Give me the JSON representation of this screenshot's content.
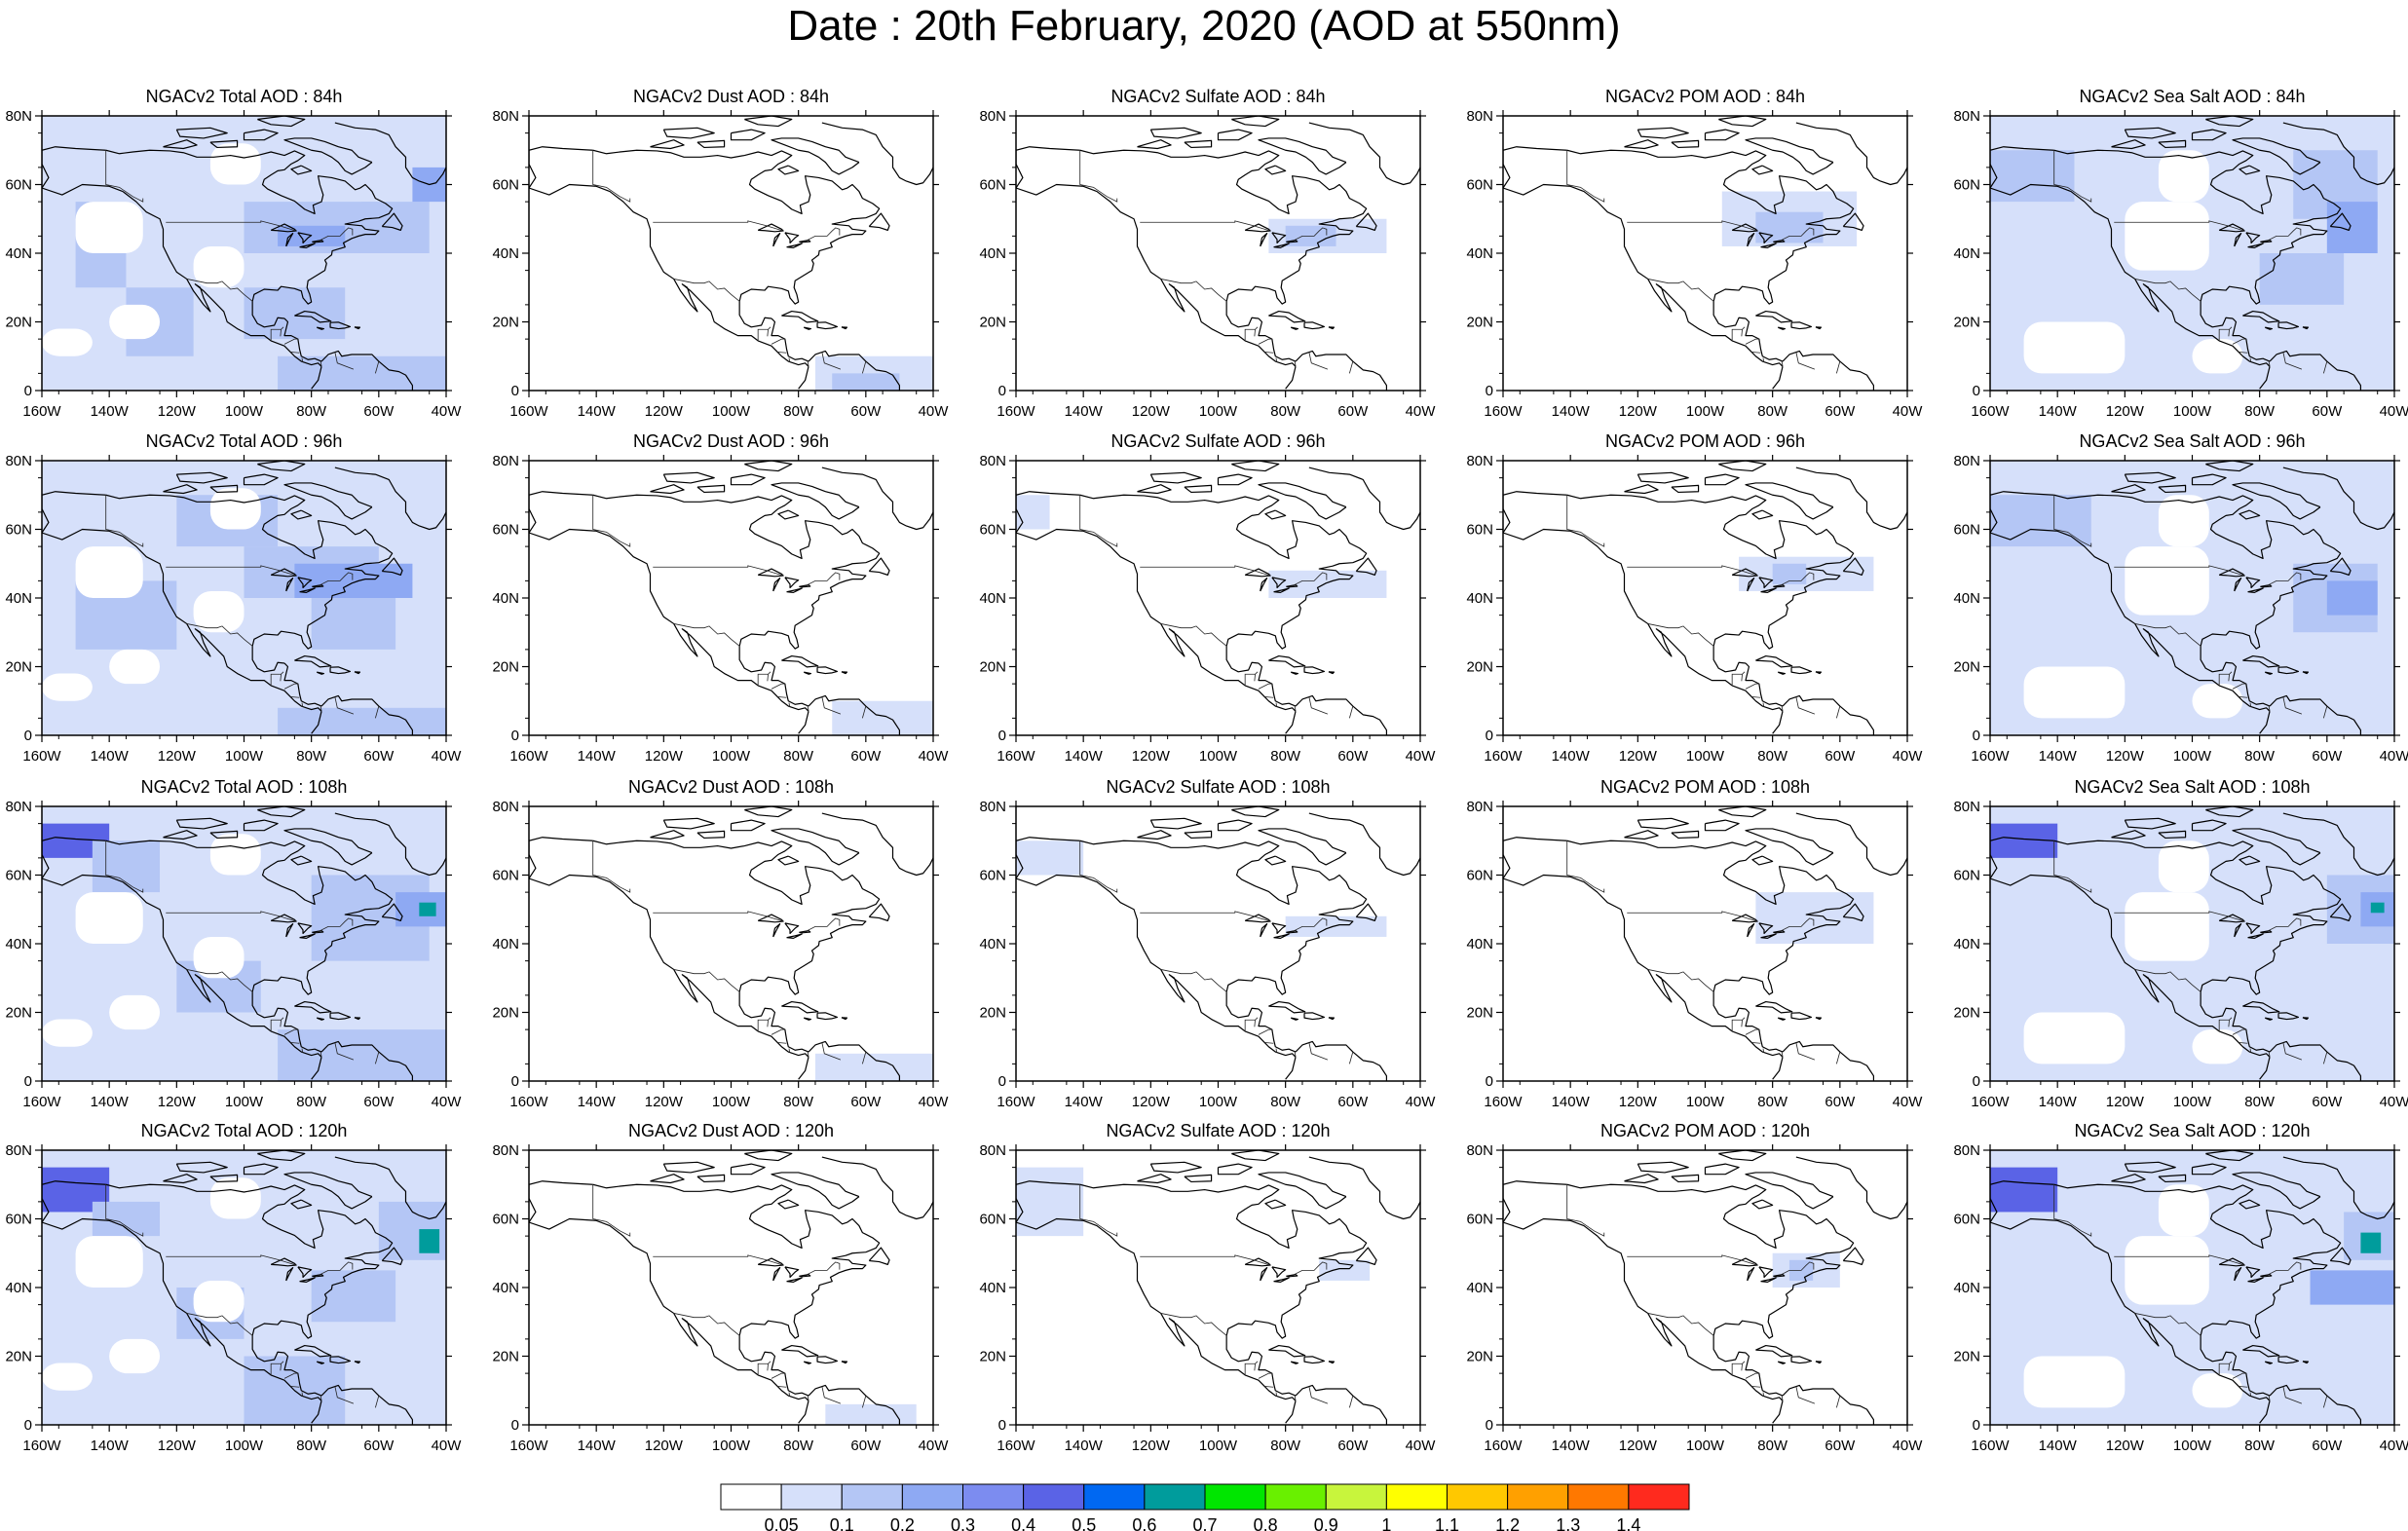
{
  "title": "Date : 20th February, 2020 (AOD at 550nm)",
  "x_ticks": [
    "160W",
    "140W",
    "120W",
    "100W",
    "80W",
    "60W",
    "40W"
  ],
  "y_ticks": [
    "80N",
    "60N",
    "40N",
    "20N",
    "0"
  ],
  "panels": [
    [
      "NGACv2 Total AOD : 84h",
      "NGACv2 Dust AOD : 84h",
      "NGACv2 Sulfate AOD : 84h",
      "NGACv2 POM AOD : 84h",
      "NGACv2 Sea Salt AOD : 84h"
    ],
    [
      "NGACv2 Total AOD : 96h",
      "NGACv2 Dust AOD : 96h",
      "NGACv2 Sulfate AOD : 96h",
      "NGACv2 POM AOD : 96h",
      "NGACv2 Sea Salt AOD : 96h"
    ],
    [
      "NGACv2 Total AOD : 108h",
      "NGACv2 Dust AOD : 108h",
      "NGACv2 Sulfate AOD : 108h",
      "NGACv2 POM AOD : 108h",
      "NGACv2 Sea Salt AOD : 108h"
    ],
    [
      "NGACv2 Total AOD : 120h",
      "NGACv2 Dust AOD : 120h",
      "NGACv2 Sulfate AOD : 120h",
      "NGACv2 POM AOD : 120h",
      "NGACv2 Sea Salt  AOD : 120h"
    ]
  ],
  "colorbar": {
    "labels": [
      "0.05",
      "0.1",
      "0.2",
      "0.3",
      "0.4",
      "0.5",
      "0.6",
      "0.7",
      "0.8",
      "0.9",
      "1",
      "1.1",
      "1.2",
      "1.3",
      "1.4"
    ],
    "colors": [
      "#ffffff",
      "#d6e0fa",
      "#b4c6f5",
      "#8ea9f3",
      "#7c8cf0",
      "#5a63e6",
      "#0068f2",
      "#009c9c",
      "#00e600",
      "#69f000",
      "#c8f53c",
      "#ffff00",
      "#ffc800",
      "#ffa000",
      "#ff7800",
      "#ff2a1e"
    ]
  },
  "map_colors": {
    "light": "#d6e0fa",
    "mid": "#b4c6f5",
    "strong": "#8ea9f3",
    "heavy": "#5a63e6",
    "teal": "#009c9c"
  }
}
